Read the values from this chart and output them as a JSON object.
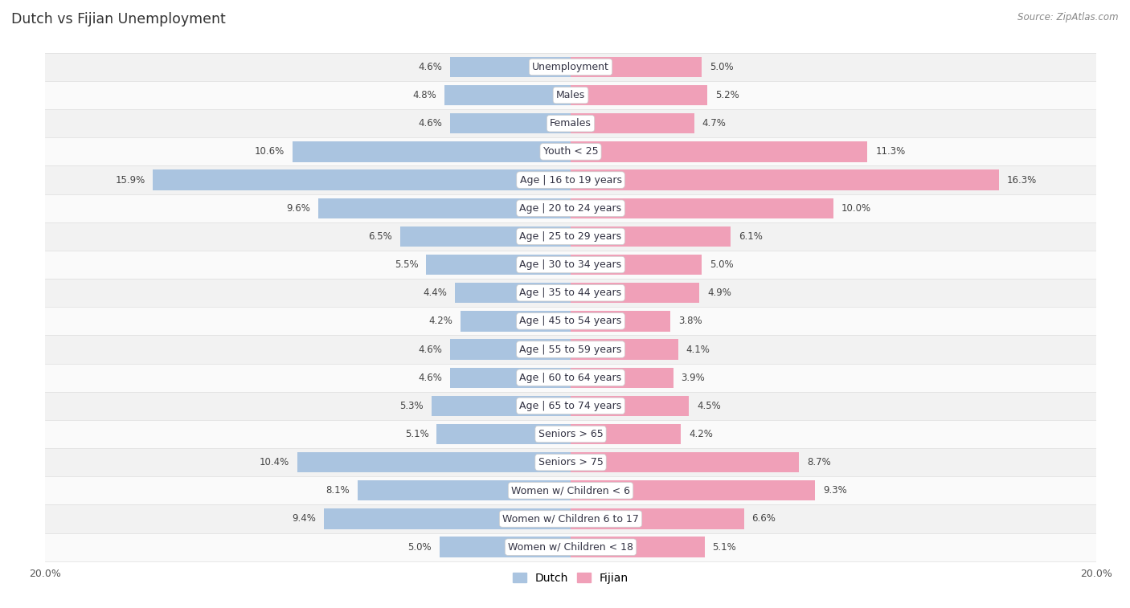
{
  "title": "Dutch vs Fijian Unemployment",
  "source": "Source: ZipAtlas.com",
  "categories": [
    "Unemployment",
    "Males",
    "Females",
    "Youth < 25",
    "Age | 16 to 19 years",
    "Age | 20 to 24 years",
    "Age | 25 to 29 years",
    "Age | 30 to 34 years",
    "Age | 35 to 44 years",
    "Age | 45 to 54 years",
    "Age | 55 to 59 years",
    "Age | 60 to 64 years",
    "Age | 65 to 74 years",
    "Seniors > 65",
    "Seniors > 75",
    "Women w/ Children < 6",
    "Women w/ Children 6 to 17",
    "Women w/ Children < 18"
  ],
  "dutch_values": [
    4.6,
    4.8,
    4.6,
    10.6,
    15.9,
    9.6,
    6.5,
    5.5,
    4.4,
    4.2,
    4.6,
    4.6,
    5.3,
    5.1,
    10.4,
    8.1,
    9.4,
    5.0
  ],
  "fijian_values": [
    5.0,
    5.2,
    4.7,
    11.3,
    16.3,
    10.0,
    6.1,
    5.0,
    4.9,
    3.8,
    4.1,
    3.9,
    4.5,
    4.2,
    8.7,
    9.3,
    6.6,
    5.1
  ],
  "dutch_color": "#aac4e0",
  "fijian_color": "#f0a0b8",
  "bar_height": 0.72,
  "xlim": 20.0,
  "bg_color": "#ffffff",
  "row_bg_odd": "#f2f2f2",
  "row_bg_even": "#fafafa",
  "label_fontsize": 9.0,
  "value_fontsize": 8.5,
  "title_fontsize": 12.5,
  "source_fontsize": 8.5
}
